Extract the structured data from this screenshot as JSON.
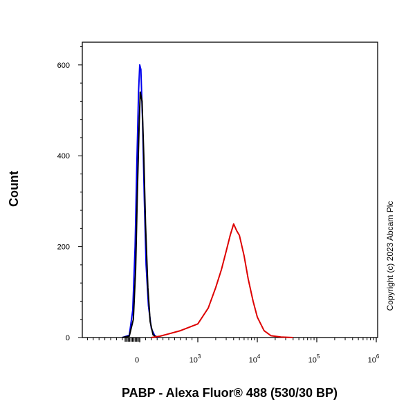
{
  "chart_data": {
    "type": "line",
    "title": "",
    "xlabel": "PABP - Alexa Fluor® 488 (530/30 BP)",
    "ylabel": "Count",
    "x_scale": "biexponential",
    "ylim": [
      0,
      650
    ],
    "xlim": [
      -300,
      1000000
    ],
    "y_ticks": [
      {
        "value": 0,
        "label": "0"
      },
      {
        "value": 200,
        "label": "200"
      },
      {
        "value": 400,
        "label": "400"
      },
      {
        "value": 600,
        "label": "600"
      }
    ],
    "x_ticks": [
      {
        "value": 0,
        "base": "0",
        "exp": ""
      },
      {
        "value": 1000,
        "base": "10",
        "exp": "3"
      },
      {
        "value": 10000,
        "base": "10",
        "exp": "4"
      },
      {
        "value": 100000,
        "base": "10",
        "exp": "5"
      },
      {
        "value": 1000000,
        "base": "10",
        "exp": "6"
      }
    ],
    "grid": false,
    "legend": "none",
    "annotation": "Copyright (c) 2023 Abcam Plc",
    "series": [
      {
        "color": "#0000ee",
        "x": [
          -300,
          -180,
          -120,
          -80,
          -50,
          -20,
          0,
          20,
          50,
          80,
          110,
          150,
          200,
          260,
          320
        ],
        "y": [
          0,
          5,
          60,
          200,
          380,
          540,
          600,
          590,
          470,
          300,
          160,
          70,
          20,
          4,
          0
        ]
      },
      {
        "color": "#000000",
        "x": [
          -300,
          -180,
          -110,
          -70,
          -40,
          -10,
          10,
          40,
          70,
          100,
          140,
          180,
          230,
          300
        ],
        "y": [
          0,
          3,
          40,
          150,
          320,
          470,
          540,
          520,
          400,
          250,
          110,
          35,
          6,
          0
        ]
      },
      {
        "color": "#dd0000",
        "x": [
          200,
          350,
          500,
          700,
          1000,
          1500,
          2000,
          2500,
          3000,
          3500,
          4000,
          4500,
          5000,
          6000,
          7000,
          8500,
          10000,
          13000,
          17000,
          25000,
          40000
        ],
        "y": [
          0,
          3,
          8,
          15,
          30,
          65,
          110,
          150,
          190,
          225,
          250,
          235,
          225,
          180,
          130,
          80,
          45,
          15,
          4,
          1,
          0
        ]
      }
    ]
  }
}
